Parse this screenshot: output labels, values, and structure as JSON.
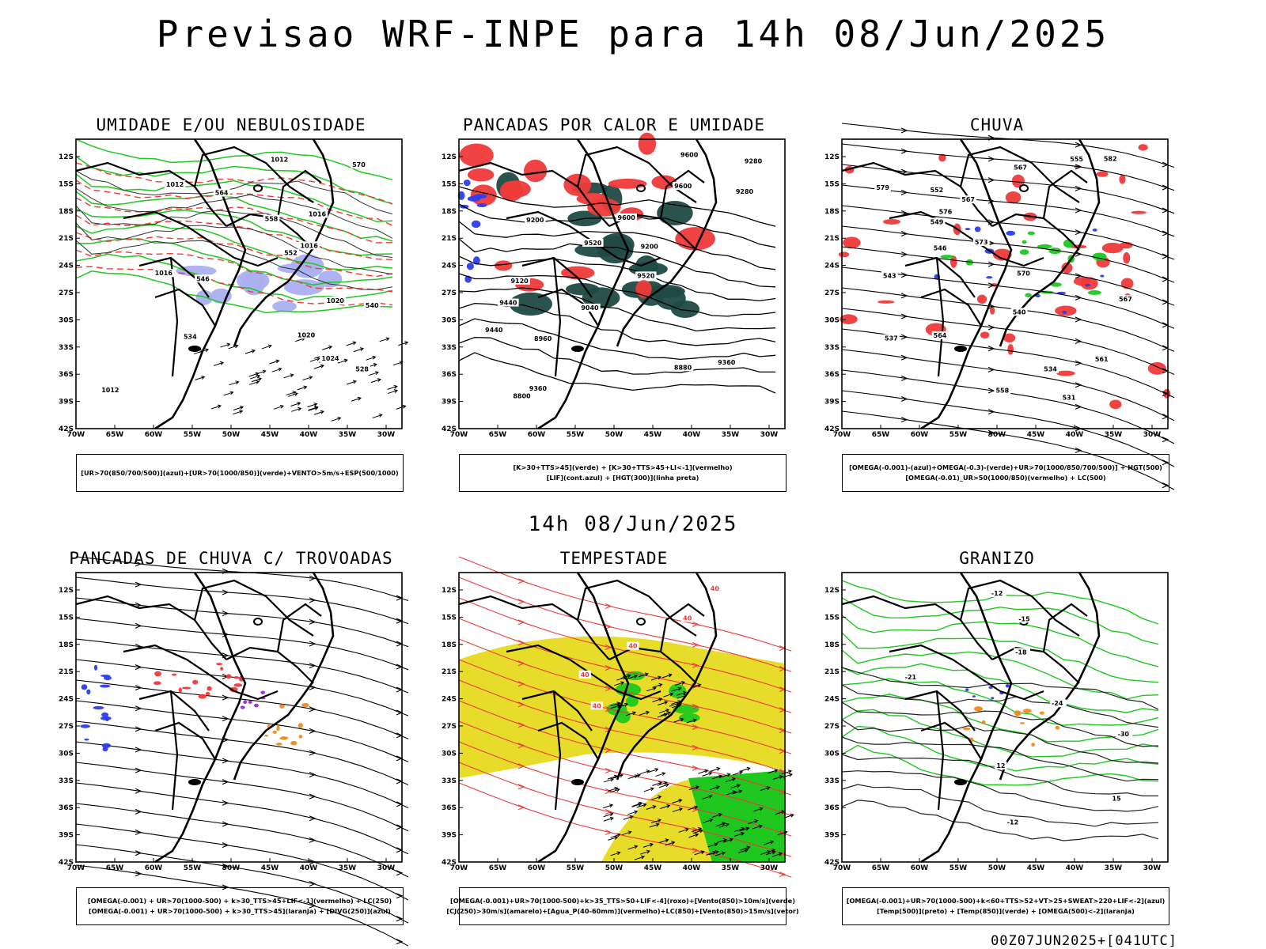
{
  "title": "Previsao WRF-INPE  para 14h 08/Jun/2025",
  "mid_title": "14h 08/Jun/2025",
  "footer": "00Z07JUN2025+[041UTC]",
  "axes": {
    "lat_ticks": [
      "12S",
      "15S",
      "18S",
      "21S",
      "24S",
      "27S",
      "30S",
      "33S",
      "36S",
      "39S",
      "42S"
    ],
    "lon_ticks": [
      "70W",
      "65W",
      "60W",
      "55W",
      "50W",
      "45W",
      "40W",
      "35W",
      "30W"
    ]
  },
  "colors": {
    "red": "#ef3a3a",
    "green": "#1ec81e",
    "blue": "#2b3cf0",
    "lavender": "#aab0f0",
    "dark_teal": "#1f4a44",
    "yellow": "#e8dc2a",
    "orange": "#f08a1a",
    "purple": "#9a2ad0"
  },
  "panels": [
    {
      "title": "UMIDADE E/OU NEBULOSIDADE",
      "legend": [
        "[UR>70(850/700/500)](azul)+[UR>70(1000/850)](verde)+VENTO>5m/s+ESP(500/1000)"
      ],
      "contour_labels": [
        "1012",
        "1012",
        "1016",
        "1016",
        "1016",
        "1020",
        "1020",
        "1024",
        "1012",
        "570",
        "564",
        "558",
        "552",
        "546",
        "540",
        "534",
        "528"
      ]
    },
    {
      "title": "PANCADAS POR CALOR E UMIDADE",
      "legend": [
        "[K>30+TTS>45](verde) + [K>30+TTS>45+LI<-1](vermelho)",
        "[LIF](cont.azul) + [HGT(300)](linha preta)"
      ],
      "contour_labels": [
        "9600",
        "9600",
        "9600",
        "9520",
        "9520",
        "9440",
        "9440",
        "9360",
        "9360",
        "9280",
        "9280",
        "9200",
        "9200",
        "9120",
        "9040",
        "8960",
        "8880",
        "8800"
      ]
    },
    {
      "title": "CHUVA",
      "legend": [
        "[OMEGA(-0.001)-(azul)+OMEGA(-0.3)-(verde)+UR>70(1000/850/700/500)] + HGT(500)",
        "[OMEGA(-0.01)_UR>50(1000/850)(vermelho) + LC(500)"
      ],
      "contour_labels": [
        "582",
        "579",
        "576",
        "573",
        "570",
        "567",
        "564",
        "561",
        "558",
        "555",
        "552",
        "549",
        "546",
        "543",
        "540",
        "537",
        "534",
        "531",
        "567",
        "567"
      ]
    },
    {
      "title": "PANCADAS DE CHUVA C/ TROVOADAS",
      "legend": [
        "[OMEGA(-0.001) + UR>70(1000-500) + k>30_TTS>45+LIF<-1](vermelho) + LC(250)",
        "[OMEGA(-0.001) + UR>70(1000-500) + k>30_TTS>45](laranja) + [DIVG(250)](azul)"
      ],
      "contour_labels": []
    },
    {
      "title": "TEMPESTADE",
      "legend": [
        "[OMEGA(-0.001)+UR>70(1000-500)+k>35_TTS>50+LIF<-4](roxo)+[Vento(850)>10m/s](verde)",
        "[CJ(250)>30m/s](amarelo)+[Agua_P(40-60mm)](vermelho)+LC(850)+[Vento(850)>15m/s](vetor)"
      ],
      "contour_labels": [
        "40",
        "40",
        "40",
        "40",
        "40"
      ]
    },
    {
      "title": "GRANIZO",
      "legend": [
        "[OMEGA(-0.001)+UR>70(1000-500)+k<60+TTS>52+VT>25+SWEAT>220+LIF<-2](azul)",
        "[Temp(500)](preto) + [Temp(850)](verde) + [OMEGA(500)<-2](laranja)"
      ],
      "contour_labels": [
        "-12",
        "-15",
        "-18",
        "-21",
        "-24",
        "-30",
        "12",
        "15",
        "-12"
      ]
    }
  ]
}
